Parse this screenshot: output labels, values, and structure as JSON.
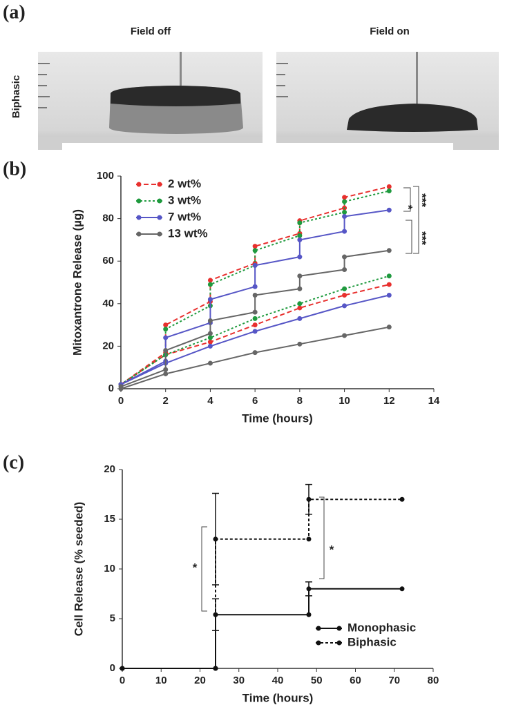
{
  "figure": {
    "panel_a": {
      "label": "(a)",
      "columns": [
        "Field off",
        "Field on"
      ],
      "row_label": "Biphasic"
    }
  },
  "chart_data": [
    {
      "type": "line",
      "panel_label": "(b)",
      "x_label": "Time (hours)",
      "y_label": "Mitoxantrone Release (µg)",
      "x": [
        0,
        2,
        2,
        4,
        4,
        6,
        6,
        8,
        8,
        10,
        10,
        12
      ],
      "x_lower": [
        0,
        2,
        4,
        6,
        8,
        10,
        12
      ],
      "xlim": [
        0,
        14
      ],
      "xticks": [
        0,
        2,
        4,
        6,
        8,
        10,
        12,
        14
      ],
      "ylim": [
        0,
        100
      ],
      "yticks": [
        0,
        20,
        40,
        60,
        80,
        100
      ],
      "legend": "upper left",
      "series": [
        {
          "name": "2 wt%",
          "color": "#e8302e",
          "dash": "7,4",
          "values": [
            2,
            17,
            30,
            41,
            51,
            59,
            67,
            73,
            79,
            85,
            90,
            95
          ],
          "lower_values": [
            2,
            16,
            22,
            30,
            38,
            44,
            49
          ]
        },
        {
          "name": "3 wt%",
          "color": "#1f9a3e",
          "dash": "3,3",
          "values": [
            2,
            16,
            28,
            39,
            49,
            58,
            65,
            72,
            78,
            83,
            88,
            93
          ],
          "lower_values": [
            2,
            16,
            24,
            33,
            40,
            47,
            53
          ]
        },
        {
          "name": "7 wt%",
          "color": "#5656c6",
          "dash": "none",
          "values": [
            2,
            13,
            24,
            31,
            42,
            48,
            58,
            62,
            70,
            74,
            81,
            84
          ],
          "lower_values": [
            2,
            12,
            20,
            27,
            33,
            39,
            44
          ]
        },
        {
          "name": "13 wt%",
          "color": "#666666",
          "dash": "none",
          "values": [
            1,
            9,
            18,
            26,
            32,
            36,
            44,
            47,
            53,
            56,
            62,
            65
          ],
          "lower_values": [
            0,
            7,
            12,
            17,
            21,
            25,
            29
          ]
        }
      ],
      "annotations": [
        "*",
        "***",
        "***"
      ]
    },
    {
      "type": "line",
      "panel_label": "(c)",
      "x_label": "Time (hours)",
      "y_label": "Cell Release (% seeded)",
      "x": [
        0,
        24,
        24,
        48,
        48,
        72
      ],
      "xlim": [
        0,
        80
      ],
      "xticks": [
        0,
        10,
        20,
        30,
        40,
        50,
        60,
        70,
        80
      ],
      "ylim": [
        0,
        20
      ],
      "yticks": [
        0,
        5,
        10,
        15,
        20
      ],
      "legend": "lower right",
      "series": [
        {
          "name": "Monophasic",
          "color": "#111111",
          "dash": "none",
          "values": [
            0,
            0,
            5.4,
            5.4,
            8,
            8
          ],
          "errors": [
            null,
            null,
            1.6,
            null,
            0.7,
            null
          ]
        },
        {
          "name": "Biphasic",
          "color": "#111111",
          "dash": "4,3",
          "values": [
            0,
            0,
            13,
            13,
            17,
            17
          ],
          "errors": [
            null,
            null,
            4.6,
            null,
            1.5,
            null
          ]
        }
      ],
      "annotations": [
        "*",
        "*"
      ]
    }
  ]
}
